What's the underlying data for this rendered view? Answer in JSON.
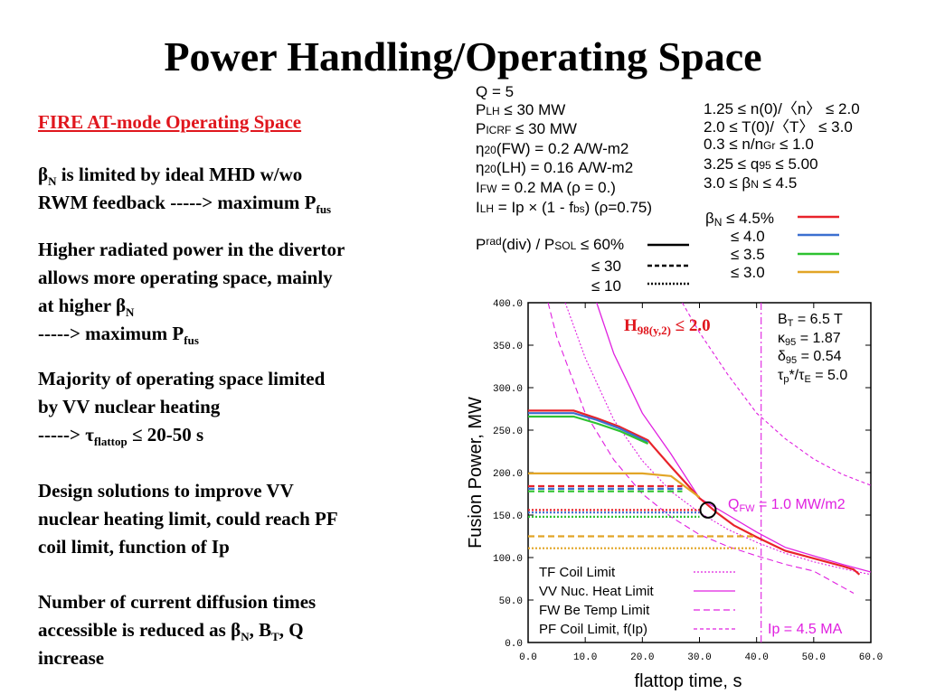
{
  "title": "Power Handling/Operating Space",
  "left": {
    "subtitle": "FIRE AT-mode Operating Space",
    "p1": {
      "b": "β",
      "bsub": "N",
      "t1": " is limited by ideal MHD w/wo",
      "t2": "RWM feedback  ----->  maximum P",
      "sub": "fus"
    },
    "p2": {
      "l1": "Higher radiated power in the divertor",
      "l2": "allows more operating space, mainly",
      "l3a": "at higher ",
      "b": "β",
      "bsub": "N",
      "l4a": "----->  maximum P",
      "l4sub": "fus"
    },
    "p3": {
      "l1": "Majority of operating space limited",
      "l2": "by VV nuclear heating",
      "l3a": "-----> ",
      "tau": "τ",
      "tausub": "flattop",
      "l3b": " ≤ 20-50 s"
    },
    "p4": {
      "l1": "Design solutions to improve VV",
      "l2": "nuclear heating limit, could reach PF",
      "l3": "coil limit, function of Ip"
    },
    "p5": {
      "l1": "Number of current diffusion times",
      "l2a": "accessible is reduced as ",
      "b": "β",
      "bsub": "N",
      "l2b": ", B",
      "btsub": "T",
      "l2c": ", Q",
      "l3": "increase"
    }
  },
  "params_left": {
    "q": "Q = 5",
    "plh": {
      "a": "P",
      "sub": "LH",
      "b": " ≤ 30 MW"
    },
    "picrf": {
      "a": "P",
      "sub": "ICRF",
      "b": " ≤ 30 MW"
    },
    "eta_fw": {
      "a": "η",
      "sub": "20",
      "b": "(FW) = 0.2 A/W-m2"
    },
    "eta_lh": {
      "a": "η",
      "sub": "20",
      "b": "(LH) = 0.16 A/W-m2"
    },
    "ifw": {
      "a": "I",
      "sub": "FW",
      "b": " = 0.2 MA  (ρ = 0.)"
    },
    "ilh": {
      "a": "I",
      "sub": "LH",
      "b": " = Ip × (1 - f",
      "sub2": "bs",
      "c": ") (ρ=0.75)"
    }
  },
  "params_right": {
    "n": "1.25 ≤ n(0)/〈n〉 ≤ 2.0",
    "t": "2.0 ≤ T(0)/〈T〉 ≤ 3.0",
    "ng": {
      "a": "0.3 ≤ n/n",
      "sub": "Gr",
      "b": " ≤ 1.0"
    },
    "q95": {
      "a": "3.25 ≤ q",
      "sub": "95",
      "b": " ≤ 5.00"
    },
    "bn": {
      "a": "3.0 ≤ β",
      "sub": "N",
      "b": " ≤ 4.5"
    }
  },
  "legend_beta": {
    "first": {
      "a": "β",
      "sub": "N",
      "b": " ≤ 4.5%"
    },
    "rest": [
      "≤ 4.0",
      "≤ 3.5",
      "≤ 3.0"
    ],
    "colors": [
      "#e8232a",
      "#3b6fd0",
      "#2ec231",
      "#e2a526"
    ]
  },
  "legend_prad": {
    "first": {
      "a": "P",
      "sub": "rad",
      "b": "(div) / P",
      "sub2": "SOL",
      "c": " ≤ 60%"
    },
    "rest": [
      "≤ 30",
      "≤ 10"
    ]
  },
  "plot_annot": {
    "h98": {
      "a": "H",
      "sub": "98(y,2)",
      "b": " ≤ 2.0"
    },
    "bt": {
      "a": "B",
      "sub": "T",
      "b": " = 6.5 T"
    },
    "kappa": {
      "a": "κ",
      "sub": "95",
      "b": " = 1.87"
    },
    "delta": {
      "a": "δ",
      "sub": "95",
      "b": " = 0.54"
    },
    "tau": {
      "a": "τ",
      "sub": "p",
      "b": "*/τ",
      "sub2": "E",
      "c": " = 5.0"
    },
    "qfw": {
      "a": "Q",
      "sub": "FW",
      "b": " = 1.0 MW/m2"
    },
    "ip": "Ip = 4.5 MA",
    "accent": "#ff00ff"
  },
  "limit_legend": [
    "TF Coil Limit",
    "VV Nuc. Heat Limit",
    "FW Be Temp Limit",
    "PF Coil Limit, f(Ip)"
  ],
  "chart_data": {
    "type": "line",
    "xlabel": "flattop time, s",
    "ylabel": "Fusion Power, MW",
    "xlim": [
      0,
      60
    ],
    "ylim": [
      0,
      400
    ],
    "xticks": [
      "0.0",
      "10.0",
      "20.0",
      "30.0",
      "40.0",
      "50.0",
      "60.0"
    ],
    "yticks": [
      "0.0",
      "50.0",
      "100.0",
      "150.0",
      "200.0",
      "250.0",
      "300.0",
      "350.0",
      "400.0"
    ],
    "series": [
      {
        "color": "#e8232a",
        "style": "solid",
        "points": [
          [
            0,
            273
          ],
          [
            8,
            273
          ],
          [
            12,
            264
          ],
          [
            16,
            254
          ],
          [
            21,
            238
          ],
          [
            22,
            230
          ],
          [
            25,
            207
          ],
          [
            30,
            170
          ],
          [
            33,
            153
          ],
          [
            36,
            138
          ],
          [
            40,
            124
          ],
          [
            45,
            108
          ],
          [
            50,
            99
          ],
          [
            55,
            90
          ],
          [
            57,
            86
          ],
          [
            58,
            80
          ]
        ]
      },
      {
        "color": "#3b6fd0",
        "style": "solid",
        "points": [
          [
            0,
            270
          ],
          [
            8,
            270
          ],
          [
            12,
            262
          ],
          [
            16,
            252
          ],
          [
            21,
            236
          ]
        ]
      },
      {
        "color": "#2ec231",
        "style": "solid",
        "points": [
          [
            0,
            266
          ],
          [
            8,
            266
          ],
          [
            12,
            258
          ],
          [
            16,
            249
          ],
          [
            21,
            234
          ]
        ]
      },
      {
        "color": "#e2a526",
        "style": "solid",
        "points": [
          [
            0,
            199
          ],
          [
            20,
            199
          ],
          [
            25,
            196
          ],
          [
            30,
            171
          ]
        ]
      },
      {
        "color": "#e8232a",
        "style": "dashed",
        "points": [
          [
            0,
            184
          ],
          [
            27,
            184
          ]
        ]
      },
      {
        "color": "#3b6fd0",
        "style": "dashed",
        "points": [
          [
            0,
            181
          ],
          [
            27,
            181
          ]
        ]
      },
      {
        "color": "#2ec231",
        "style": "dashed",
        "points": [
          [
            0,
            178
          ],
          [
            27,
            178
          ]
        ]
      },
      {
        "color": "#e2a526",
        "style": "dashed",
        "points": [
          [
            0,
            125
          ],
          [
            40,
            125
          ]
        ]
      },
      {
        "color": "#e8232a",
        "style": "dotted",
        "points": [
          [
            0,
            156
          ],
          [
            30,
            156
          ]
        ]
      },
      {
        "color": "#3b6fd0",
        "style": "dotted",
        "points": [
          [
            0,
            153
          ],
          [
            30,
            153
          ]
        ]
      },
      {
        "color": "#2ec231",
        "style": "dotted",
        "points": [
          [
            0,
            148
          ],
          [
            30,
            148
          ]
        ]
      },
      {
        "color": "#e2a526",
        "style": "dotted",
        "points": [
          [
            0,
            111
          ],
          [
            40,
            111
          ]
        ]
      }
    ],
    "limit_curves": [
      {
        "label": "TF Coil Limit",
        "style": "dotted",
        "points": [
          [
            6.5,
            400
          ],
          [
            10,
            335
          ],
          [
            15,
            262
          ],
          [
            20,
            214
          ],
          [
            25,
            178
          ],
          [
            30,
            153
          ],
          [
            35,
            133
          ],
          [
            40,
            118
          ],
          [
            45,
            105
          ],
          [
            50,
            95
          ],
          [
            55,
            87
          ],
          [
            60,
            80
          ]
        ]
      },
      {
        "label": "VV Nuc. Heat Limit",
        "style": "solid",
        "points": [
          [
            12,
            400
          ],
          [
            15,
            340
          ],
          [
            20,
            270
          ],
          [
            25,
            222
          ],
          [
            30,
            170
          ],
          [
            35,
            150
          ],
          [
            40,
            130
          ],
          [
            45,
            112
          ],
          [
            50,
            102
          ],
          [
            55,
            92
          ],
          [
            60,
            83
          ]
        ]
      },
      {
        "label": "FW Be Temp Limit",
        "style": "dashed",
        "points": [
          [
            3.5,
            400
          ],
          [
            5,
            360
          ],
          [
            10,
            270
          ],
          [
            15,
            215
          ],
          [
            20,
            175
          ],
          [
            25,
            148
          ],
          [
            30,
            127
          ],
          [
            35,
            113
          ],
          [
            40,
            102
          ],
          [
            45,
            92
          ],
          [
            50,
            84
          ],
          [
            57,
            58
          ]
        ]
      },
      {
        "label": "PF Coil Limit, f(Ip)",
        "style": "dashed",
        "points": [
          [
            27,
            400
          ],
          [
            30,
            365
          ],
          [
            35,
            315
          ],
          [
            40,
            270
          ],
          [
            45,
            240
          ],
          [
            50,
            216
          ],
          [
            55,
            198
          ],
          [
            60,
            185
          ]
        ]
      },
      {
        "label": "Ip = 4.5 MA",
        "style": "dashdot",
        "points": [
          [
            40.8,
            0
          ],
          [
            40.8,
            400
          ]
        ]
      }
    ],
    "marker": {
      "x": 31.5,
      "y": 156,
      "shape": "circle"
    }
  }
}
